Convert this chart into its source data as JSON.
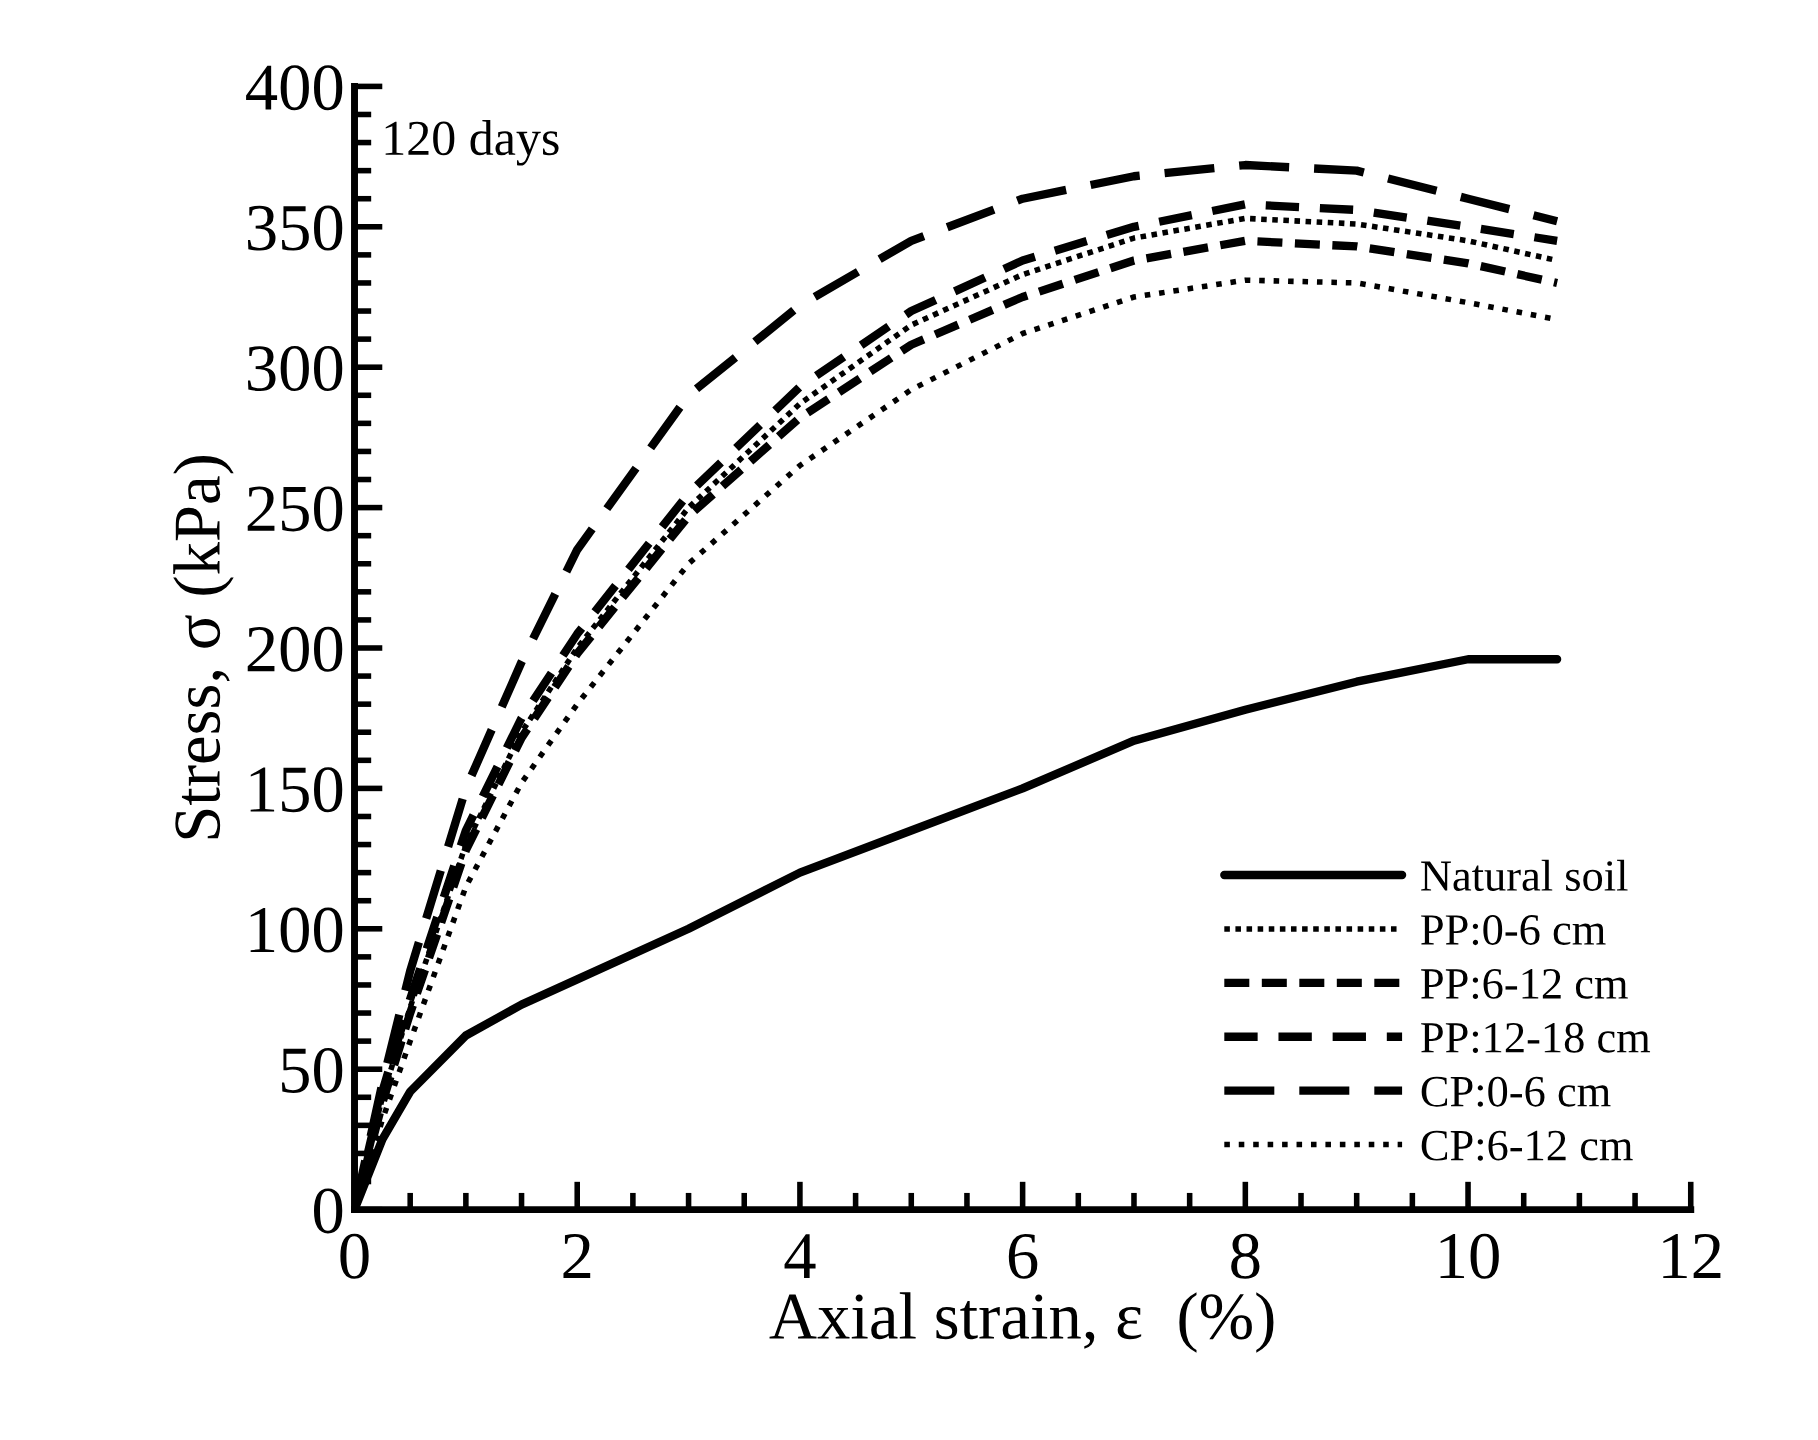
{
  "chart_data": {
    "type": "line",
    "xlabel": "Axial strain, ε  (%)",
    "ylabel": "Stress, σ (kPa)",
    "annotations": [
      "120 days"
    ],
    "xlim": [
      0,
      12
    ],
    "xticks": [
      0,
      2,
      4,
      6,
      8,
      10,
      12
    ],
    "ylim": [
      0,
      400
    ],
    "yticks": [
      0,
      50,
      100,
      150,
      200,
      250,
      300,
      350,
      400
    ],
    "grid": false,
    "legend": "bottom right",
    "marker": "none",
    "x": [
      0,
      0.25,
      0.5,
      1,
      1.5,
      2,
      3,
      4,
      5,
      6,
      7,
      8,
      9,
      10,
      10.8
    ],
    "series": [
      {
        "name": "Natural soil",
        "color": "#000000",
        "line_style": "solid",
        "values": [
          0,
          25,
          42,
          62,
          73,
          82,
          100,
          120,
          135,
          150,
          167,
          178,
          188,
          196,
          196
        ]
      },
      {
        "name": "PP:0-6 cm",
        "color": "#000000",
        "line_style": "dotted",
        "values": [
          0,
          40,
          72,
          130,
          170,
          200,
          250,
          287,
          315,
          333,
          346,
          353,
          351,
          345,
          338
        ]
      },
      {
        "name": "PP:6-12 cm",
        "color": "#000000",
        "line_style": "dashed",
        "values": [
          0,
          38,
          70,
          128,
          168,
          198,
          247,
          282,
          308,
          325,
          338,
          345,
          343,
          337,
          330
        ]
      },
      {
        "name": "PP:12-18 cm",
        "color": "#000000",
        "line_style": "dashed",
        "values": [
          0,
          42,
          75,
          135,
          175,
          205,
          255,
          293,
          320,
          338,
          350,
          358,
          356,
          350,
          345
        ]
      },
      {
        "name": "CP:0-6 cm",
        "color": "#000000",
        "line_style": "dashed",
        "values": [
          0,
          45,
          85,
          150,
          195,
          235,
          290,
          322,
          345,
          360,
          368,
          372,
          370,
          360,
          352
        ]
      },
      {
        "name": "CP:6-12 cm",
        "color": "#000000",
        "line_style": "dotted",
        "values": [
          0,
          32,
          60,
          115,
          152,
          180,
          230,
          265,
          292,
          312,
          325,
          331,
          330,
          323,
          317
        ]
      }
    ]
  }
}
